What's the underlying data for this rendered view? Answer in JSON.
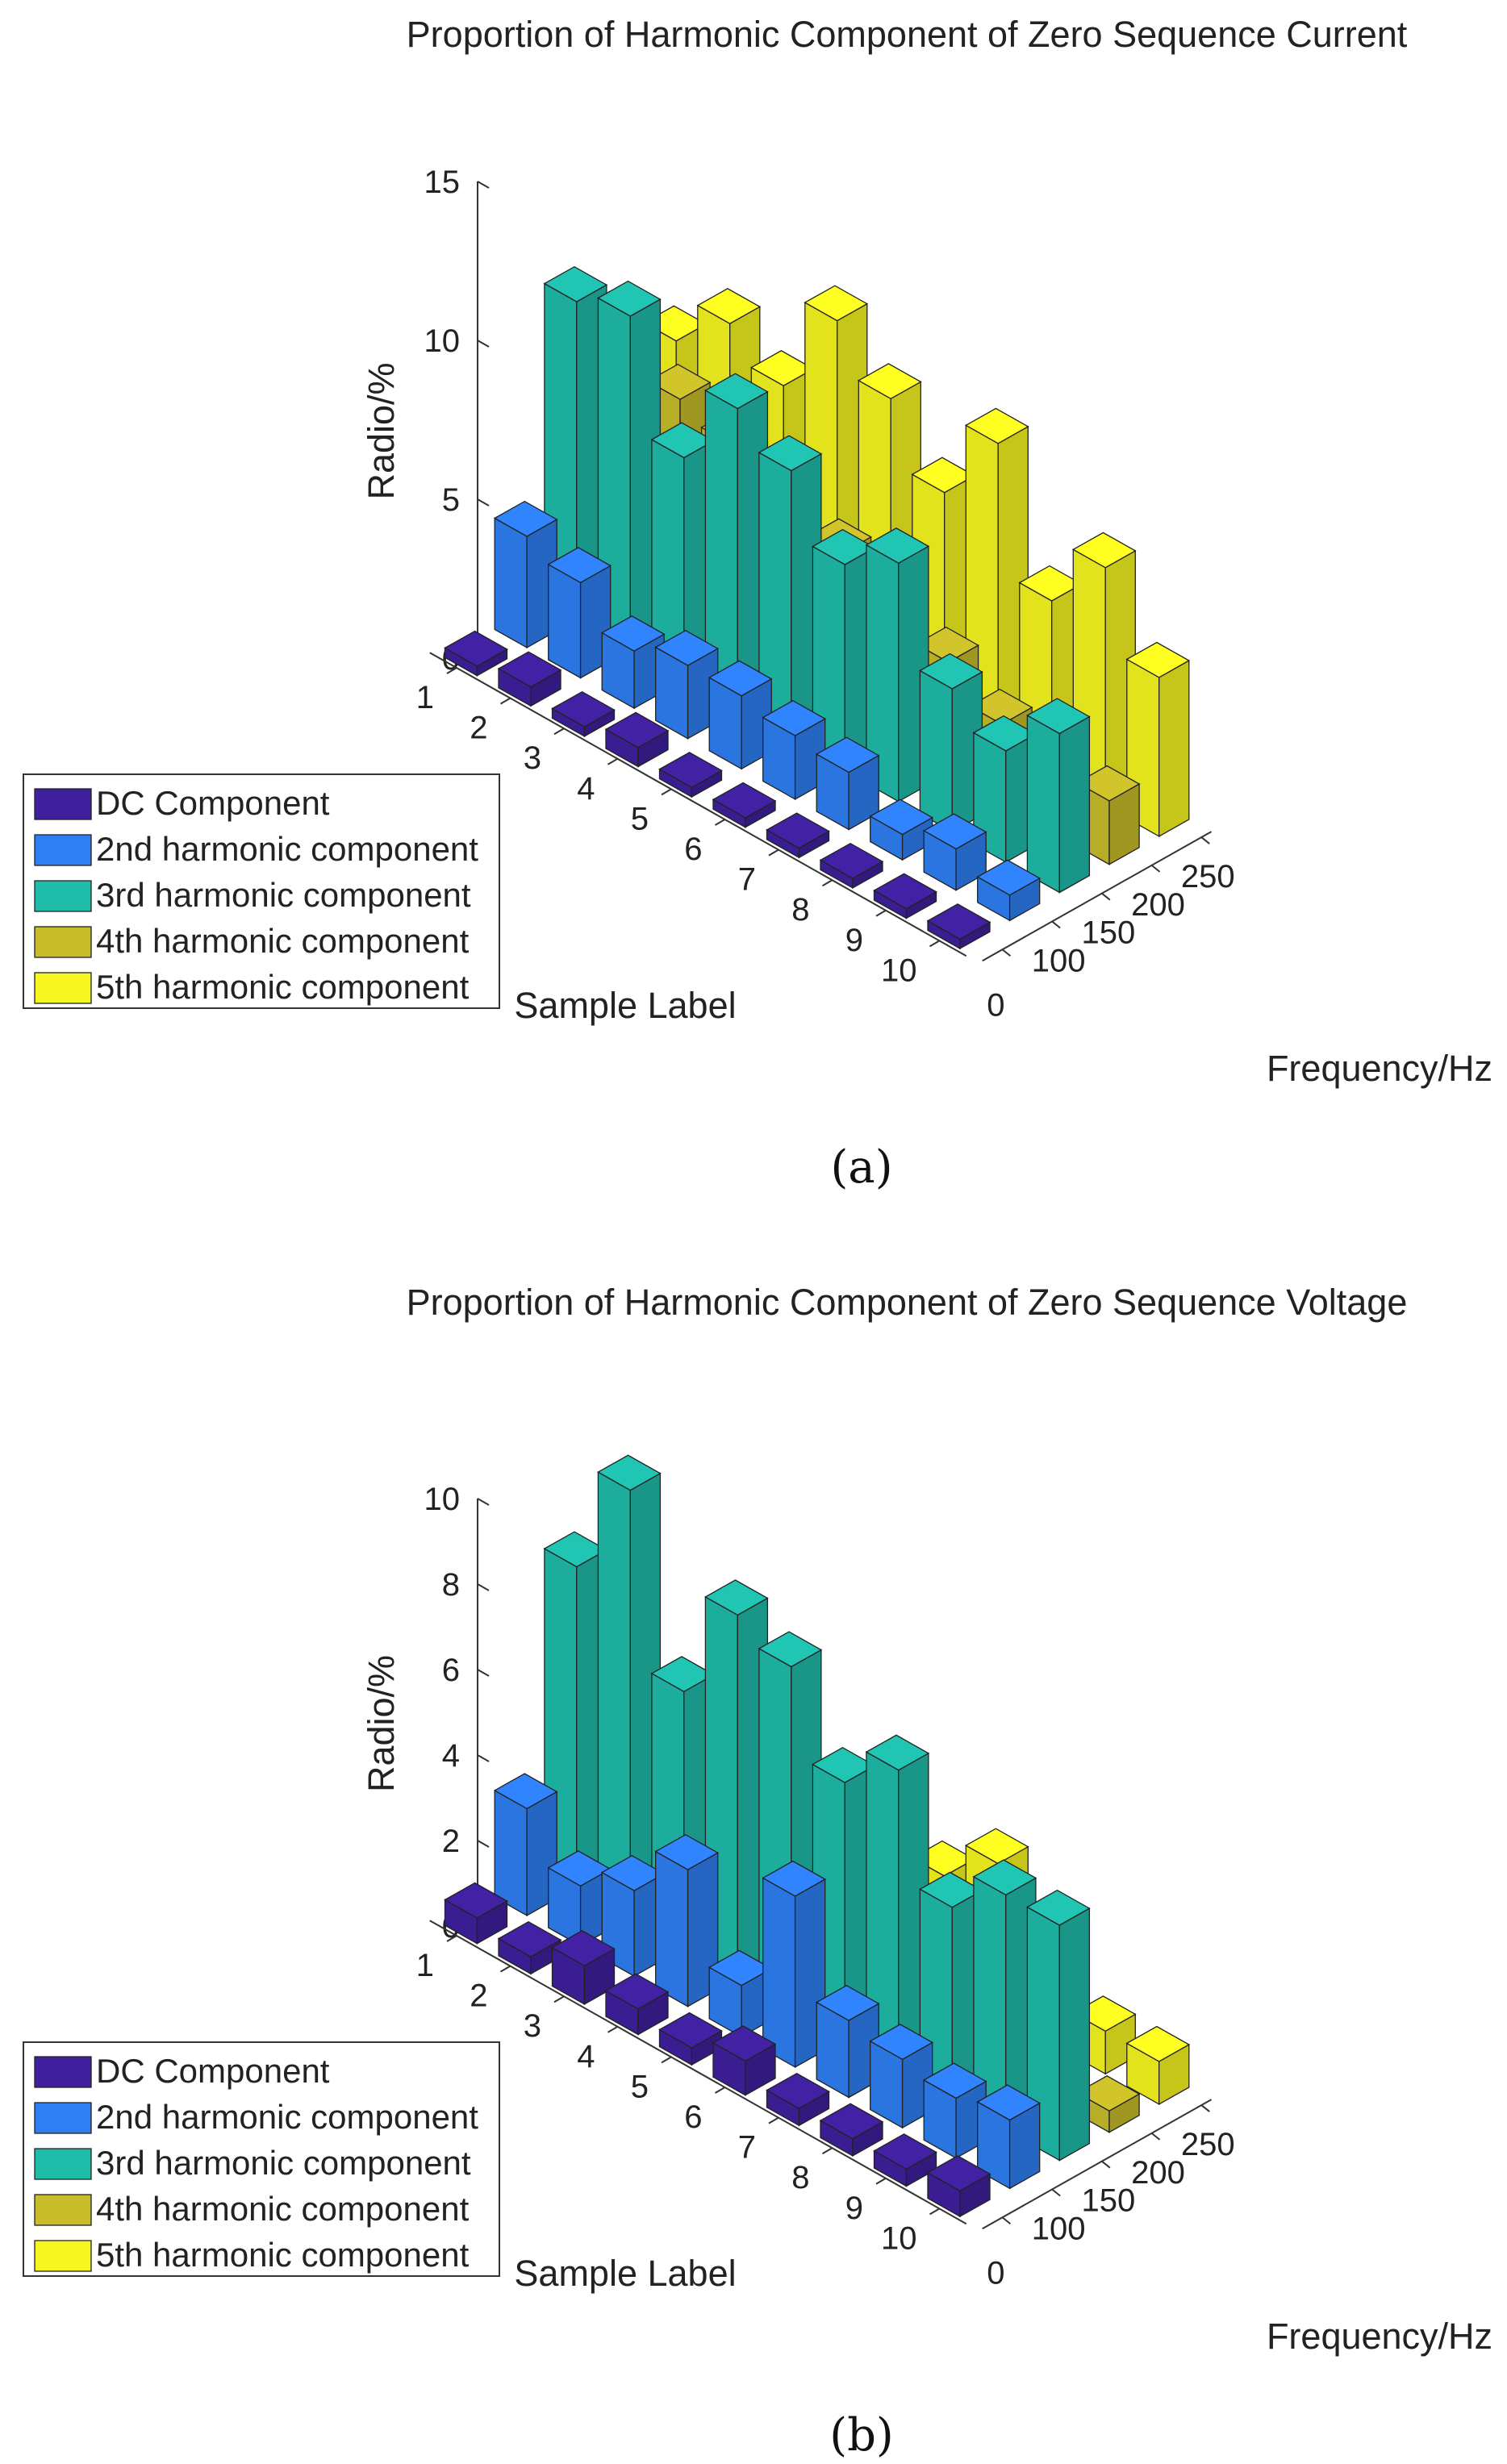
{
  "chart_data": [
    {
      "type": "bar3d",
      "panel_label": "(a)",
      "title": "Proportion of Harmonic Component of Zero Sequence Current",
      "zlabel": "Radio/%",
      "xlabel": "Sample Label",
      "ylabel": "Frequency/Hz",
      "zlim": [
        0,
        15
      ],
      "z_ticks": [
        "0",
        "5",
        "10",
        "15"
      ],
      "sample_ticks": [
        "1",
        "2",
        "3",
        "4",
        "5",
        "6",
        "7",
        "8",
        "9",
        "10"
      ],
      "frequency_ticks": [
        "0",
        "100",
        "150",
        "200",
        "250"
      ],
      "frequencies": [
        0,
        100,
        150,
        200,
        250
      ],
      "grid": false,
      "legend_position": "left",
      "series": [
        {
          "name": "DC Component",
          "color": "#3f1f9c",
          "values": [
            0.3,
            0.6,
            0.3,
            0.6,
            0.3,
            0.3,
            0.3,
            0.3,
            0.3,
            0.3
          ]
        },
        {
          "name": "2nd harmonic component",
          "color": "#2e7ff2",
          "values": [
            3.5,
            3.0,
            1.8,
            2.3,
            2.3,
            2.0,
            1.8,
            0.8,
            1.3,
            0.8
          ]
        },
        {
          "name": "3rd harmonic component",
          "color": "#1fbcaa",
          "values": [
            10.0,
            10.5,
            7.0,
            9.5,
            8.5,
            6.5,
            7.5,
            4.5,
            3.5,
            5.0
          ]
        },
        {
          "name": "4th harmonic component",
          "color": "#c8bc2a",
          "values": [
            7.5,
            7.0,
            6.5,
            6.0,
            5.0,
            4.5,
            3.5,
            2.5,
            1.5,
            2.0
          ]
        },
        {
          "name": "5th harmonic component",
          "color": "#f6f620",
          "values": [
            7.0,
            8.5,
            7.5,
            10.5,
            9.0,
            7.0,
            9.5,
            5.5,
            7.5,
            5.0
          ]
        }
      ]
    },
    {
      "type": "bar3d",
      "panel_label": "(b)",
      "title": "Proportion of Harmonic Component of Zero Sequence Voltage",
      "zlabel": "Radio/%",
      "xlabel": "Sample Label",
      "ylabel": "Frequency/Hz",
      "zlim": [
        0,
        10
      ],
      "z_ticks": [
        "0",
        "2",
        "4",
        "6",
        "8",
        "10"
      ],
      "sample_ticks": [
        "1",
        "2",
        "3",
        "4",
        "5",
        "6",
        "7",
        "8",
        "9",
        "10"
      ],
      "frequency_ticks": [
        "0",
        "100",
        "150",
        "200",
        "250"
      ],
      "frequencies": [
        0,
        100,
        150,
        200,
        250
      ],
      "grid": false,
      "legend_position": "left",
      "series": [
        {
          "name": "DC Component",
          "color": "#3f1f9c",
          "values": [
            0.6,
            0.4,
            0.9,
            0.6,
            0.4,
            0.8,
            0.4,
            0.4,
            0.4,
            0.6
          ]
        },
        {
          "name": "2nd harmonic component",
          "color": "#2e7ff2",
          "values": [
            2.5,
            1.4,
            2.0,
            3.2,
            1.2,
            4.0,
            1.8,
            1.6,
            1.4,
            1.6
          ]
        },
        {
          "name": "3rd harmonic component",
          "color": "#1fbcaa",
          "values": [
            7.5,
            10.0,
            6.0,
            8.5,
            8.0,
            6.0,
            7.0,
            4.5,
            5.5,
            5.5
          ]
        },
        {
          "name": "4th harmonic component",
          "color": "#c8bc2a",
          "values": [
            0.5,
            0.6,
            0.7,
            0.8,
            0.6,
            0.5,
            0.6,
            0.3,
            0.8,
            0.5
          ]
        },
        {
          "name": "5th harmonic component",
          "color": "#f6f620",
          "values": [
            1.5,
            2.0,
            1.5,
            2.5,
            3.5,
            2.5,
            3.5,
            1.5,
            1.0,
            1.0
          ]
        }
      ]
    }
  ]
}
